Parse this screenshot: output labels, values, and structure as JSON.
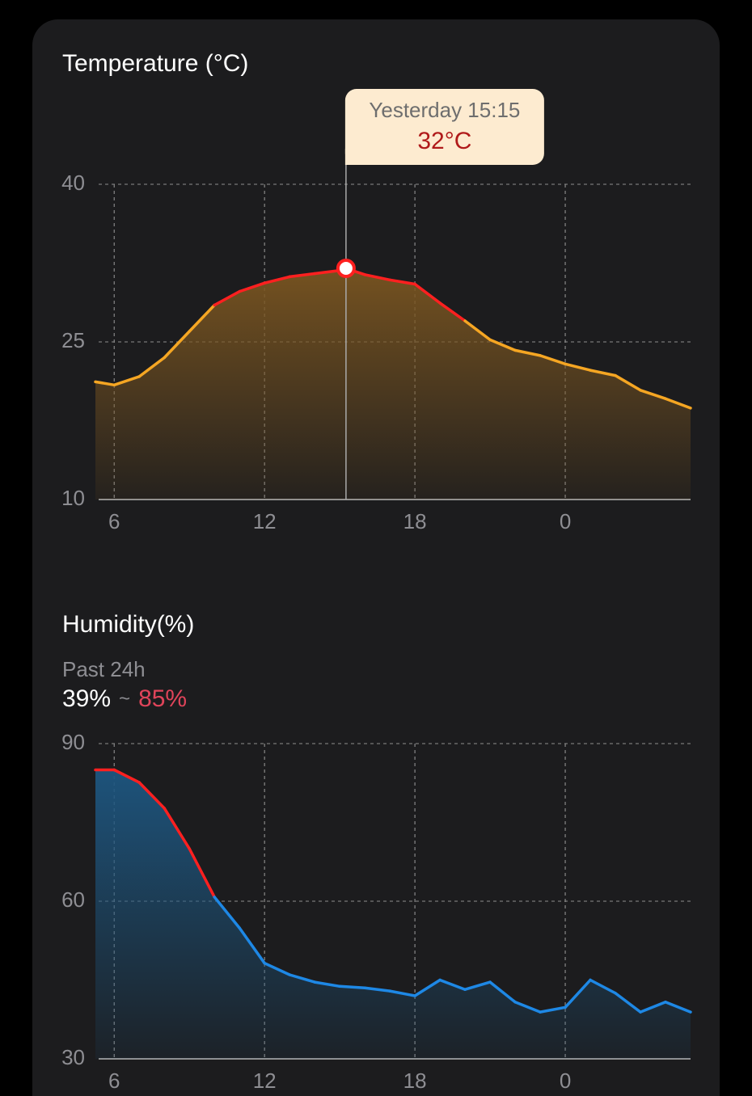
{
  "chart_data": [
    {
      "type": "line",
      "title": "Temperature (°C)",
      "x": [
        5.25,
        6,
        7,
        8,
        9,
        10,
        11,
        12,
        13,
        14,
        15,
        15.25,
        16,
        17,
        18,
        19,
        20,
        21,
        22,
        23,
        24,
        25,
        26,
        27,
        28,
        29
      ],
      "series": [
        {
          "name": "Temperature",
          "color": "#f5a623",
          "area_color": "#7a5520",
          "values": [
            21.2,
            20.9,
            21.7,
            23.5,
            26.0,
            28.5,
            29.8,
            30.6,
            31.2,
            31.5,
            31.8,
            32,
            31.4,
            30.9,
            30.5,
            28.7,
            27.0,
            25.2,
            24.2,
            23.7,
            22.9,
            22.3,
            21.8,
            20.4,
            19.6,
            18.7
          ]
        }
      ],
      "threshold": 26.5,
      "threshold_color": "#ff2020",
      "xlim": [
        5.25,
        29
      ],
      "xticks": [
        6,
        12,
        18,
        {
          "value": 24,
          "label": "0"
        }
      ],
      "ylim": [
        10,
        40
      ],
      "yticks": [
        10,
        25,
        40
      ],
      "grid": true,
      "highlight": {
        "x": 15.25,
        "y": 32,
        "time_label": "Yesterday 15:15",
        "value_label": "32°C"
      }
    },
    {
      "type": "line",
      "title": "Humidity(%)",
      "subtitle": "Past 24h",
      "range": {
        "min": 39,
        "max": 85,
        "value_labels": [
          "39%",
          "85%"
        ],
        "separator": "~"
      },
      "x": [
        5.25,
        6,
        7,
        8,
        9,
        10,
        11,
        12,
        13,
        14,
        15,
        16,
        17,
        18,
        19,
        20,
        21,
        22,
        23,
        24,
        25,
        26,
        27,
        28,
        29
      ],
      "series": [
        {
          "name": "Humidity",
          "color": "#1e88e5",
          "area_color": "#1d5680",
          "values": [
            85,
            85,
            82.6,
            77.7,
            70,
            60.8,
            54.9,
            48.2,
            46,
            44.6,
            43.8,
            43.5,
            42.9,
            42,
            45,
            43.2,
            44.6,
            40.8,
            38.9,
            39.8,
            45,
            42.5,
            38.9,
            40.8,
            38.9
          ]
        }
      ],
      "threshold": 60,
      "threshold_color": "#ff2020",
      "xlim": [
        5.25,
        29
      ],
      "xticks": [
        6,
        12,
        18,
        {
          "value": 24,
          "label": "0"
        }
      ],
      "ylim": [
        30,
        90
      ],
      "yticks": [
        30,
        60,
        90
      ],
      "grid": true
    }
  ]
}
